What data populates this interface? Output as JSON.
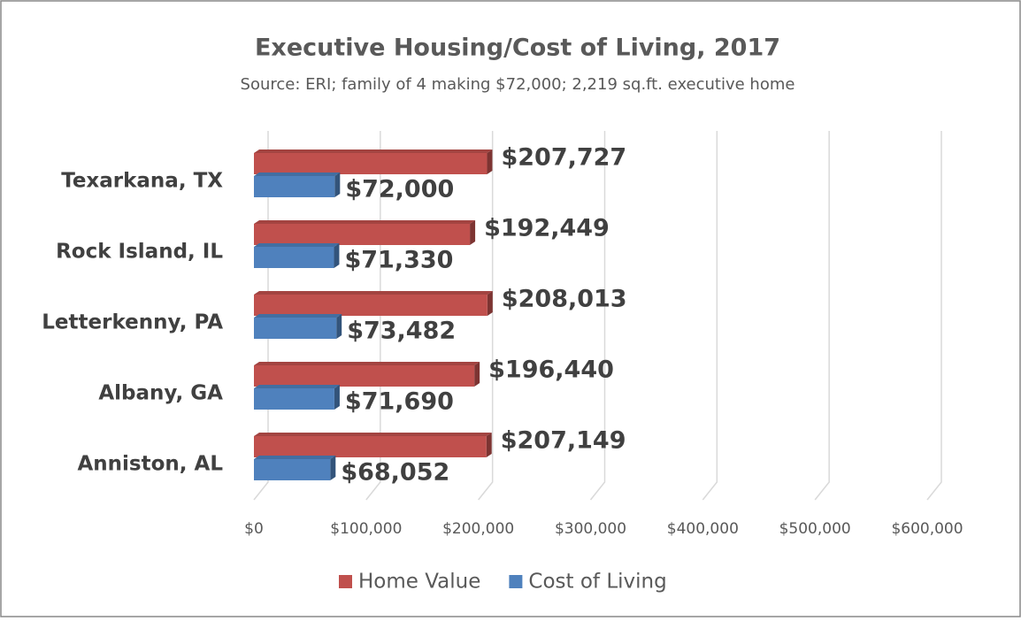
{
  "chart_data": {
    "type": "bar",
    "orientation": "horizontal",
    "title": "Executive Housing/Cost of Living, 2017",
    "subtitle": "Source: ERI; family of 4 making $72,000; 2,219 sq.ft. executive home",
    "categories": [
      "Texarkana, TX",
      "Rock Island, IL",
      "Letterkenny, PA",
      "Albany, GA",
      "Anniston, AL"
    ],
    "series": [
      {
        "name": "Home Value",
        "color": "#c0504d",
        "values": [
          207727,
          192449,
          208013,
          196440,
          207149
        ],
        "value_labels": [
          "$207,727",
          "$192,449",
          "$208,013",
          "$196,440",
          "$207,149"
        ]
      },
      {
        "name": "Cost of Living",
        "color": "#4f81bd",
        "values": [
          72000,
          71330,
          73482,
          71690,
          68052
        ],
        "value_labels": [
          "$72,000",
          "$71,330",
          "$73,482",
          "$71,690",
          "$68,052"
        ]
      }
    ],
    "xlim": [
      0,
      600000
    ],
    "xticks": [
      {
        "value": 0,
        "label": "$0"
      },
      {
        "value": 100000,
        "label": "$100,000"
      },
      {
        "value": 200000,
        "label": "$200,000"
      },
      {
        "value": 300000,
        "label": "$300,000"
      },
      {
        "value": 400000,
        "label": "$400,000"
      },
      {
        "value": 500000,
        "label": "$500,000"
      },
      {
        "value": 600000,
        "label": "$600,000"
      }
    ],
    "grid": true,
    "legend": "bottom"
  }
}
